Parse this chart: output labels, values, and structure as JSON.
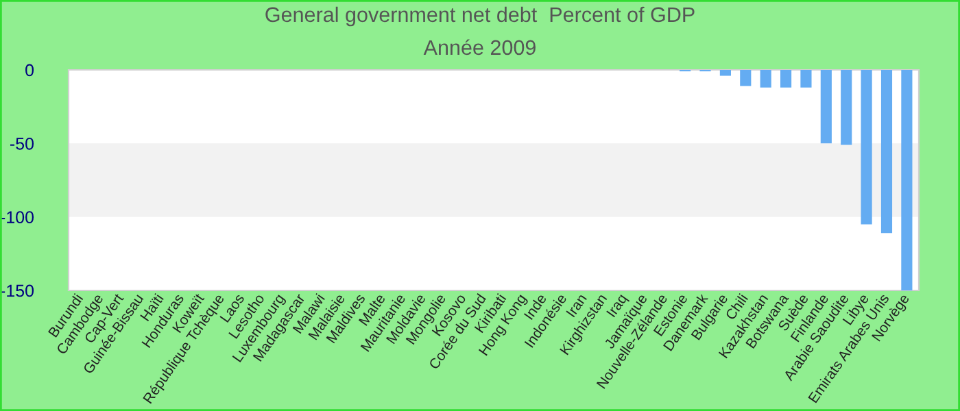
{
  "chart_data": {
    "type": "bar",
    "title": "General government net debt  Percent of GDP",
    "subtitle": "Année 2009",
    "categories": [
      "Burundi",
      "Cambodge",
      "Cap-Vert",
      "Guinée-Bissau",
      "Haïti",
      "Honduras",
      "Koweït",
      "République Tchèque",
      "Laos",
      "Lesotho",
      "Luxembourg",
      "Madagascar",
      "Malawi",
      "Malaisie",
      "Maldives",
      "Malte",
      "Mauritanie",
      "Moldavie",
      "Mongolie",
      "Kosovo",
      "Corée du Sud",
      "Kiribati",
      "Hong Kong",
      "Inde",
      "Indonésie",
      "Iran",
      "Kirghizstan",
      "Iraq",
      "Jamaïque",
      "Nouvelle-Zélande",
      "Estonie",
      "Danemark",
      "Bulgarie",
      "Chili",
      "Kazakhstan",
      "Botswana",
      "Suède",
      "Finlande",
      "Arabie Saoudite",
      "Libye",
      "Emirats Arabes Unis",
      "Norvège"
    ],
    "values": [
      0,
      0,
      0,
      0,
      0,
      0,
      0,
      0,
      0,
      0,
      0,
      0,
      0,
      0,
      0,
      0,
      0,
      0,
      0,
      0,
      0,
      0,
      0,
      0,
      0,
      0,
      0,
      0,
      0,
      0,
      -1,
      -1,
      -4,
      -11,
      -12,
      -12,
      -12,
      -50,
      -51,
      -105,
      -111,
      -150
    ],
    "color": "#64acf2",
    "ylim": [
      -150,
      0
    ],
    "yticks": [
      0,
      -50,
      -100,
      -150
    ],
    "bands": [
      {
        "axis": "y",
        "from": -100,
        "to": -50,
        "color": "#f2f2f2"
      }
    ]
  }
}
